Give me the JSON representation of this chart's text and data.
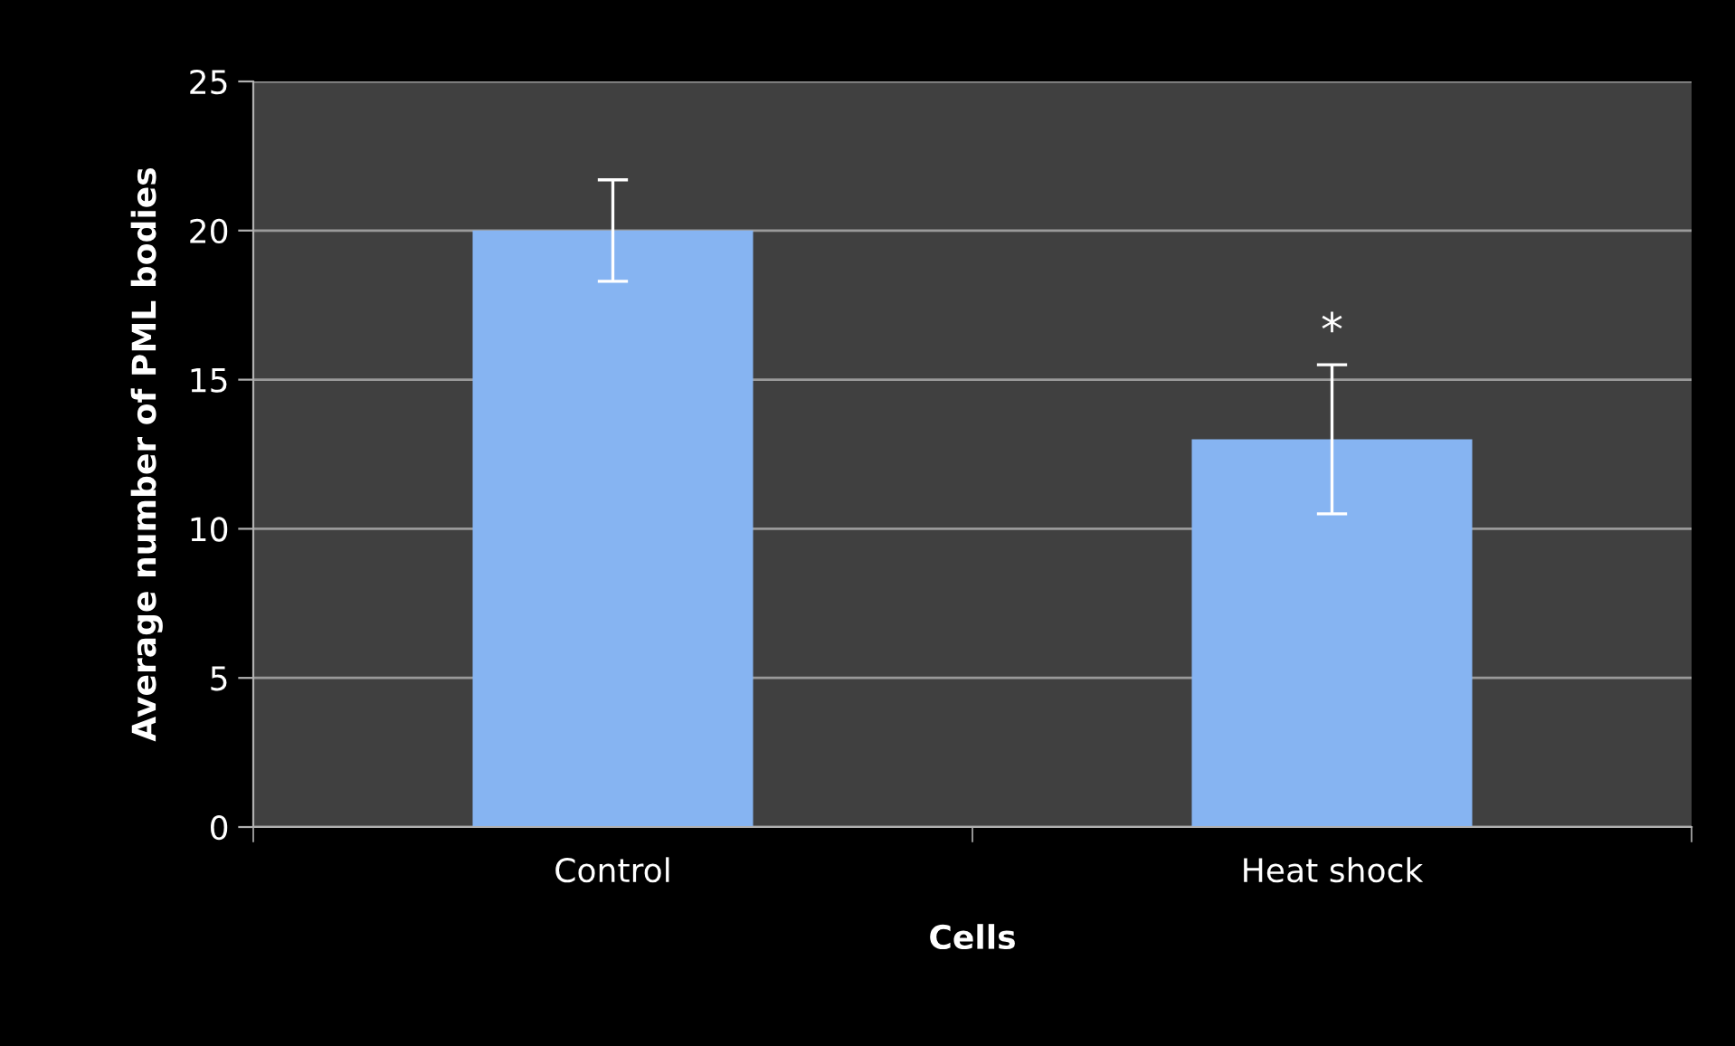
{
  "chart_data": {
    "type": "bar",
    "xlabel": "Cells",
    "ylabel": "Average number of PML bodies",
    "categories": [
      "Control",
      "Heat shock"
    ],
    "values": [
      20,
      13
    ],
    "errors": [
      1.7,
      2.5
    ],
    "color": "#86b4f2",
    "ylim": [
      0,
      25
    ],
    "yticks": [
      0,
      5,
      10,
      15,
      20,
      25
    ],
    "grid": "y",
    "annotations": [
      "*"
    ]
  }
}
